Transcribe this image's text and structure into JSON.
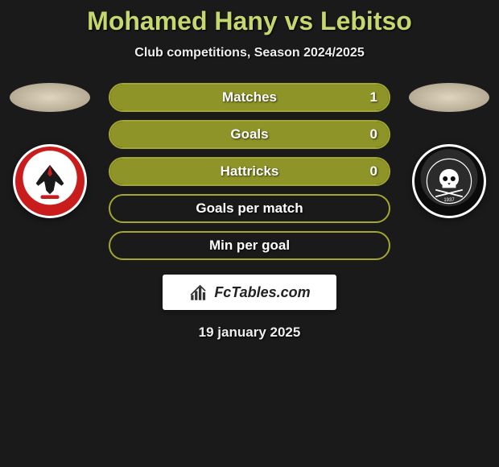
{
  "title": "Mohamed Hany vs Lebitso",
  "subtitle": "Club competitions, Season 2024/2025",
  "date": "19 january 2025",
  "logo_text": "FcTables.com",
  "colors": {
    "accent": "#a2a72e",
    "accent_fill": "#8f9428",
    "title": "#c5d86d"
  },
  "stats": [
    {
      "label": "Matches",
      "value": "1",
      "fill_pct": 100,
      "show_value": true
    },
    {
      "label": "Goals",
      "value": "0",
      "fill_pct": 100,
      "show_value": true
    },
    {
      "label": "Hattricks",
      "value": "0",
      "fill_pct": 100,
      "show_value": true
    },
    {
      "label": "Goals per match",
      "value": "",
      "fill_pct": 0,
      "show_value": false
    },
    {
      "label": "Min per goal",
      "value": "",
      "fill_pct": 0,
      "show_value": false
    }
  ],
  "left_club": {
    "name": "Al Ahly"
  },
  "right_club": {
    "name": "Orlando Pirates",
    "year": "1937"
  }
}
